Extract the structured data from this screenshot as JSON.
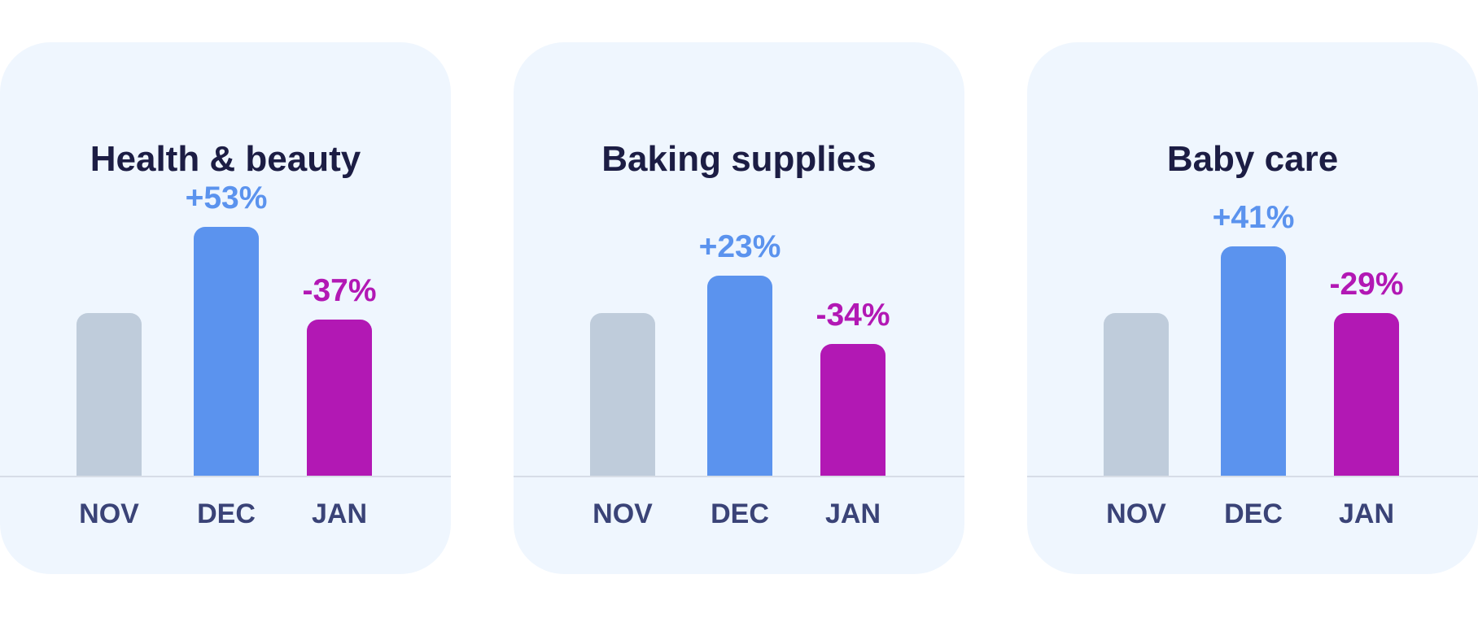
{
  "colors": {
    "panel_bg": "#eff6fe",
    "baseline": "#d7dde7",
    "title": "#1c1d44",
    "category_label": "#3a4377",
    "nov_bar": "#bfccdb",
    "dec_bar": "#5b93ee",
    "jan_bar": "#b218b4",
    "dec_label": "#5b93ee",
    "jan_label": "#b218b4"
  },
  "chart_data": [
    {
      "type": "bar",
      "title": "Health & beauty",
      "categories": [
        "NOV",
        "DEC",
        "JAN"
      ],
      "values": [
        100,
        153,
        96
      ],
      "data_labels": [
        "",
        "+53%",
        "-37%"
      ],
      "ylim": [
        0,
        160
      ]
    },
    {
      "type": "bar",
      "title": "Baking supplies",
      "categories": [
        "NOV",
        "DEC",
        "JAN"
      ],
      "values": [
        100,
        123,
        81
      ],
      "data_labels": [
        "",
        "+23%",
        "-34%"
      ],
      "ylim": [
        0,
        160
      ]
    },
    {
      "type": "bar",
      "title": "Baby care",
      "categories": [
        "NOV",
        "DEC",
        "JAN"
      ],
      "values": [
        100,
        141,
        100
      ],
      "data_labels": [
        "",
        "+41%",
        "-29%"
      ],
      "ylim": [
        0,
        160
      ]
    }
  ]
}
